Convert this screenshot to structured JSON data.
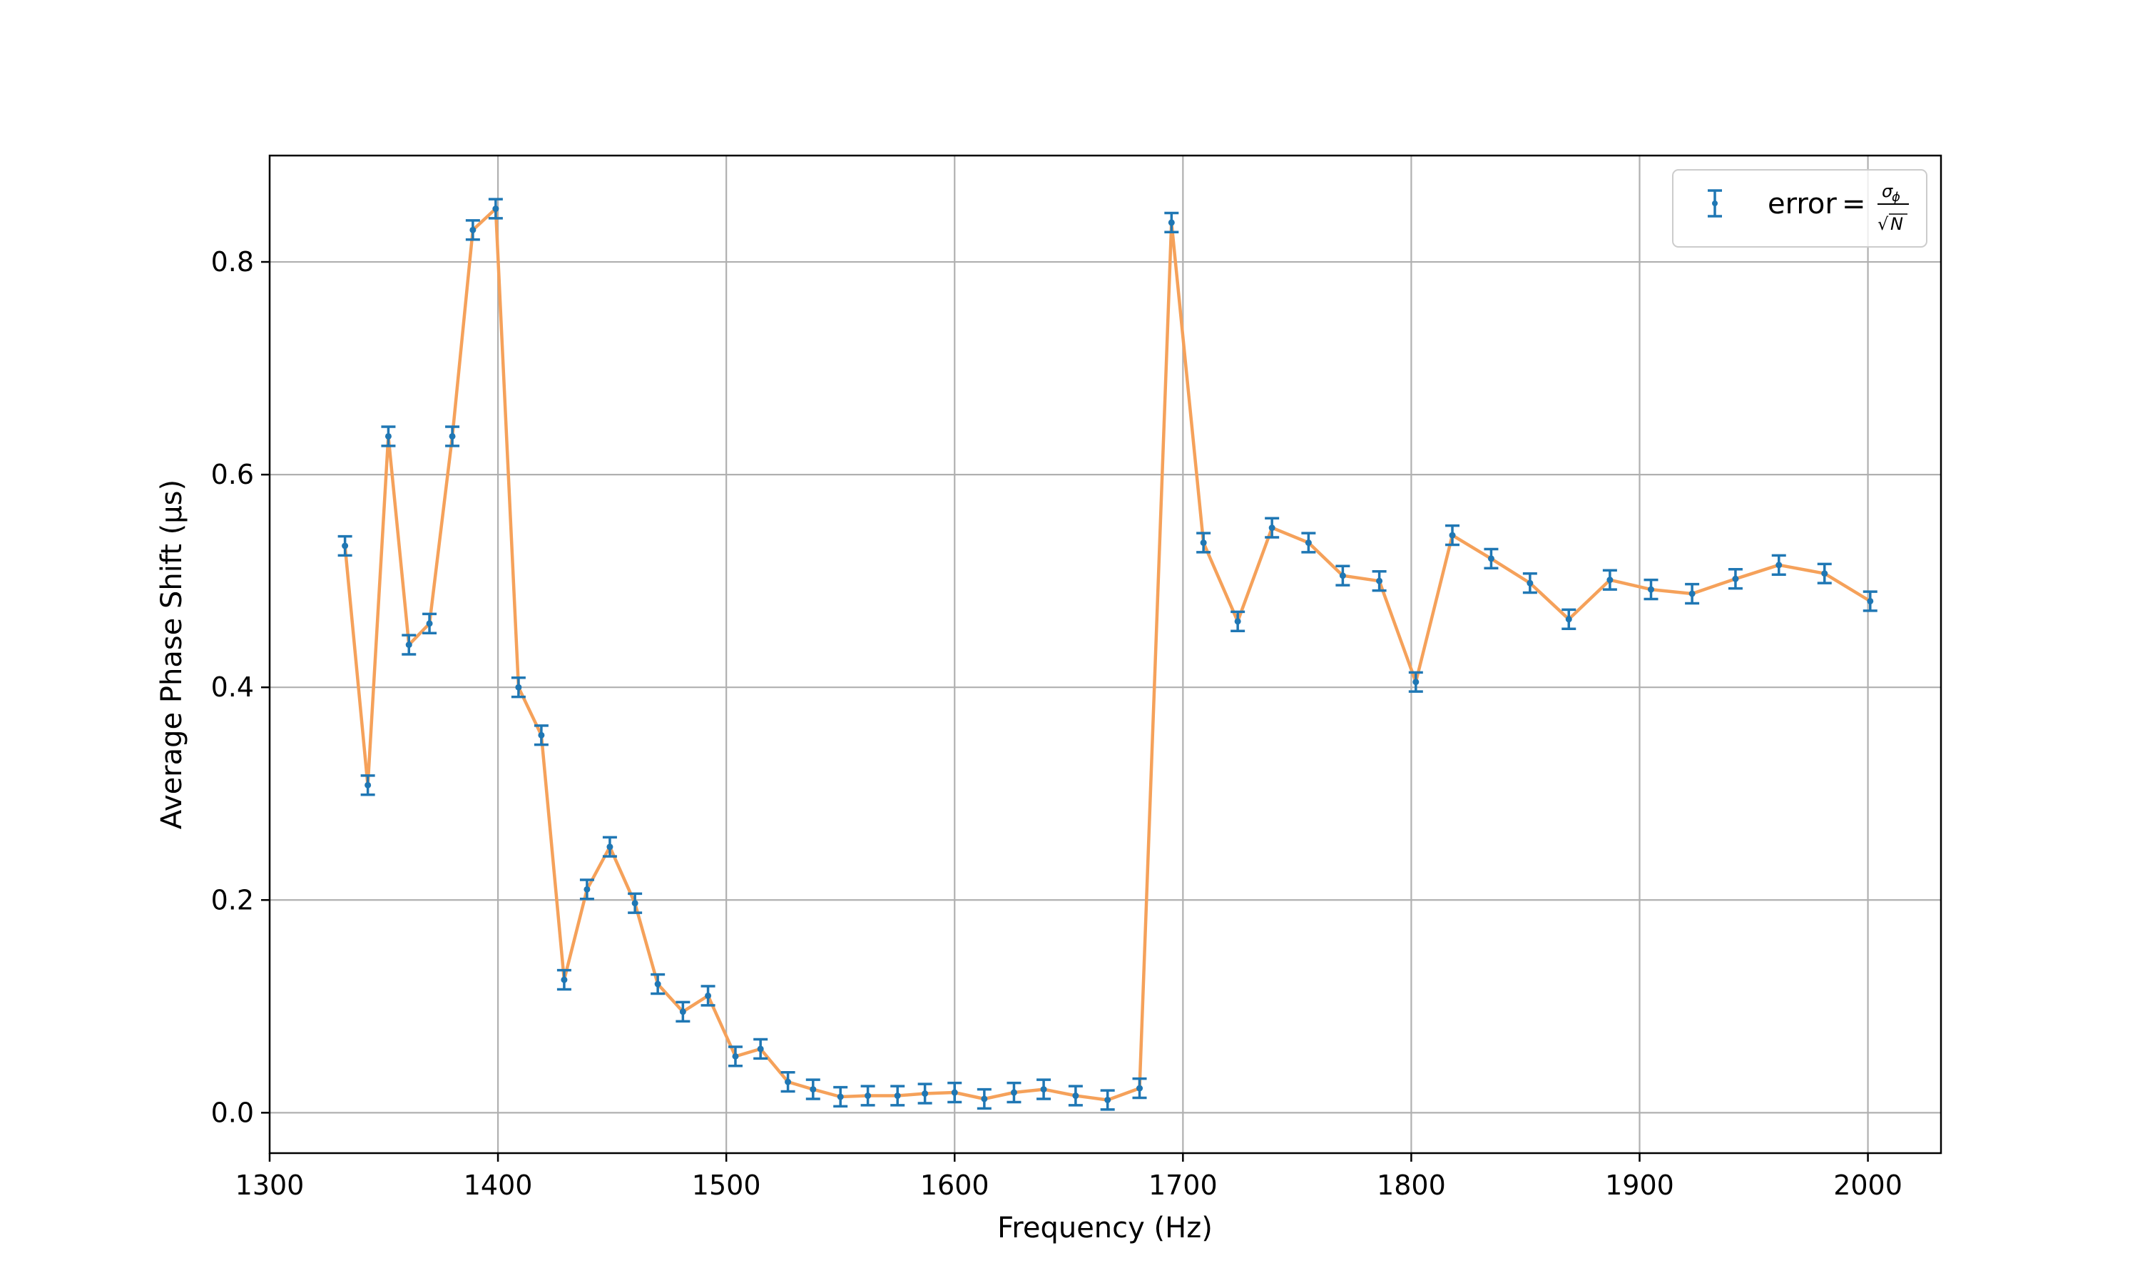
{
  "chart_data": {
    "type": "line",
    "title": "",
    "xlabel": "Frequency (Hz)",
    "ylabel": "Average Phase Shift (µs)",
    "xlim": [
      1300,
      2032
    ],
    "ylim": [
      -0.038,
      0.9
    ],
    "xticks": [
      1300,
      1400,
      1500,
      1600,
      1700,
      1800,
      1900,
      2000
    ],
    "yticks": [
      0.0,
      0.2,
      0.4,
      0.6,
      0.8
    ],
    "xtick_labels": [
      "1300",
      "1400",
      "1500",
      "1600",
      "1700",
      "1800",
      "1900",
      "2000"
    ],
    "ytick_labels": [
      "0.0",
      "0.2",
      "0.4",
      "0.6",
      "0.8"
    ],
    "grid": true,
    "legend": {
      "position": "top-right",
      "label_prefix": "error",
      "label_eq": "=",
      "label_num": "σ",
      "label_num_sub": "ϕ",
      "label_den_root": "√",
      "label_den": "N"
    },
    "colors": {
      "line": "#f5a15a",
      "errorbar": "#1f77b4",
      "grid": "#b0b0b0"
    },
    "series": [
      {
        "x": [
          1333,
          1343,
          1352,
          1361,
          1370,
          1380,
          1389,
          1399,
          1409,
          1419,
          1429,
          1439,
          1449,
          1460,
          1470,
          1481,
          1492,
          1504,
          1515,
          1527,
          1538,
          1550,
          1562,
          1575,
          1587,
          1600,
          1613,
          1626,
          1639,
          1653,
          1667,
          1681,
          1695,
          1709,
          1724,
          1739,
          1755,
          1770,
          1786,
          1802,
          1818,
          1835,
          1852,
          1869,
          1887,
          1905,
          1923,
          1942,
          1961,
          1981,
          2001
        ],
        "y": [
          0.533,
          0.308,
          0.636,
          0.44,
          0.46,
          0.636,
          0.83,
          0.85,
          0.4,
          0.355,
          0.125,
          0.21,
          0.25,
          0.197,
          0.121,
          0.095,
          0.11,
          0.053,
          0.06,
          0.029,
          0.022,
          0.015,
          0.016,
          0.016,
          0.018,
          0.019,
          0.013,
          0.019,
          0.022,
          0.016,
          0.012,
          0.023,
          0.837,
          0.536,
          0.462,
          0.55,
          0.536,
          0.505,
          0.5,
          0.405,
          0.543,
          0.521,
          0.498,
          0.464,
          0.501,
          0.492,
          0.488,
          0.502,
          0.515,
          0.507,
          0.481
        ],
        "yerr": 0.009
      }
    ]
  }
}
